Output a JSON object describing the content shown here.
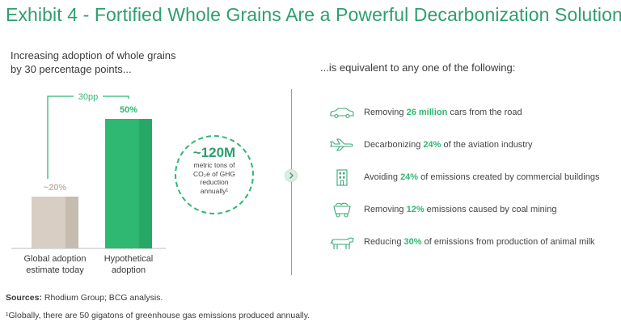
{
  "title": "Exhibit 4 - Fortified Whole Grains Are a Powerful Decarbonization Solution",
  "left_heading": "Increasing adoption of whole grains by 30 percentage points...",
  "right_heading": "...is equivalent to any one of the following:",
  "chart_data": {
    "type": "bar",
    "categories": [
      "Global adoption estimate today",
      "Hypothetical adoption"
    ],
    "values": [
      20,
      50
    ],
    "data_labels": [
      "~20%",
      "50%"
    ],
    "bar_colors": [
      "#d8cec3",
      "#2eb872"
    ],
    "bar_shade_colors": [
      "#c6bbaf",
      "#27a864"
    ],
    "label_colors": [
      "#c4b6a8",
      "#2eb872"
    ],
    "ylim": [
      0,
      50
    ],
    "annotation": {
      "text": "30pp",
      "color": "#2eb872"
    }
  },
  "circle": {
    "value": "~120M",
    "description": "metric tons of CO₂e of GHG reduction annually¹",
    "color": "#2eb872"
  },
  "equivalents": [
    {
      "icon": "car-icon",
      "prefix": "Removing ",
      "highlight": "26 million",
      "suffix": " cars from the road"
    },
    {
      "icon": "airplane-icon",
      "prefix": "Decarbonizing ",
      "highlight": "24%",
      "suffix": " of the aviation industry"
    },
    {
      "icon": "building-icon",
      "prefix": "Avoiding ",
      "highlight": "24%",
      "suffix": " of emissions created by commercial buildings"
    },
    {
      "icon": "mine-cart-icon",
      "prefix": "Removing ",
      "highlight": "12%",
      "suffix": " emissions caused by coal mining"
    },
    {
      "icon": "cow-icon",
      "prefix": "Reducing ",
      "highlight": "30%",
      "suffix": " of emissions from production of animal milk"
    }
  ],
  "sources_label": "Sources:",
  "sources_text": " Rhodium Group; BCG analysis.",
  "footnote": "¹Globally, there are 50 gigatons of greenhouse gas emissions produced annually.",
  "colors": {
    "accent": "#2eb872",
    "title": "#2e9e6e",
    "beige": "#d8cec3"
  }
}
